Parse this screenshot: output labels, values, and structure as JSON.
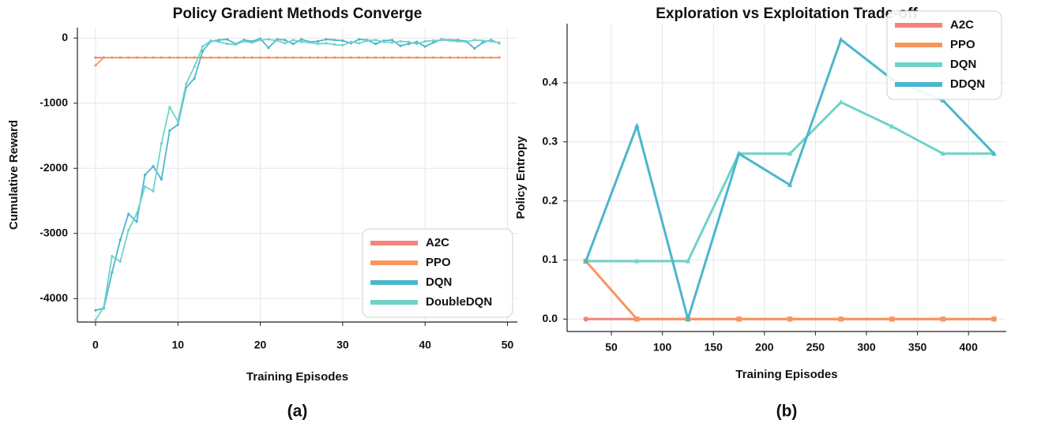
{
  "chart_data": [
    {
      "type": "line",
      "title": "Policy Gradient Methods Converge",
      "xlabel": "Training Episodes",
      "ylabel": "Cumulative Reward",
      "caption": "(a)",
      "x": [
        0,
        1,
        2,
        3,
        4,
        5,
        6,
        7,
        8,
        9,
        10,
        11,
        12,
        13,
        14,
        15,
        16,
        17,
        18,
        19,
        20,
        21,
        22,
        23,
        24,
        25,
        26,
        27,
        28,
        29,
        30,
        31,
        32,
        33,
        34,
        35,
        36,
        37,
        38,
        39,
        40,
        41,
        42,
        43,
        44,
        45,
        46,
        47,
        48,
        49
      ],
      "series": [
        {
          "name": "A2C",
          "color": "#f4837d",
          "marker": "circle",
          "values": [
            -300,
            -300,
            -300,
            -300,
            -300,
            -300,
            -300,
            -300,
            -300,
            -300,
            -300,
            -300,
            -300,
            -300,
            -300,
            -300,
            -300,
            -300,
            -300,
            -300,
            -300,
            -300,
            -300,
            -300,
            -300,
            -300,
            -300,
            -300,
            -300,
            -300,
            -300,
            -300,
            -300,
            -300,
            -300,
            -300,
            -300,
            -300,
            -300,
            -300,
            -300,
            -300,
            -300,
            -300,
            -300,
            -300,
            -300,
            -300,
            -300,
            -300
          ]
        },
        {
          "name": "PPO",
          "color": "#f7955f",
          "marker": "circle",
          "values": [
            -420,
            -300,
            -300,
            -300,
            -300,
            -300,
            -300,
            -300,
            -300,
            -300,
            -300,
            -300,
            -300,
            -300,
            -300,
            -300,
            -300,
            -300,
            -300,
            -300,
            -300,
            -300,
            -300,
            -300,
            -300,
            -300,
            -300,
            -300,
            -300,
            -300,
            -300,
            -300,
            -300,
            -300,
            -300,
            -300,
            -300,
            -300,
            -300,
            -300,
            -300,
            -300,
            -300,
            -300,
            -300,
            -300,
            -300,
            -300,
            -300,
            -300
          ]
        },
        {
          "name": "DQN",
          "color": "#4bb6cf",
          "marker": "circle",
          "values": [
            -4180,
            -4150,
            -3600,
            -3100,
            -2700,
            -2820,
            -2100,
            -1970,
            -2170,
            -1420,
            -1330,
            -760,
            -620,
            -200,
            -50,
            -30,
            -20,
            -90,
            -30,
            -50,
            -10,
            -150,
            -20,
            -30,
            -90,
            -20,
            -60,
            -50,
            -20,
            -30,
            -40,
            -80,
            -20,
            -30,
            -90,
            -40,
            -30,
            -120,
            -90,
            -60,
            -130,
            -70,
            -20,
            -30,
            -30,
            -50,
            -160,
            -70,
            -30,
            -80
          ]
        },
        {
          "name": "DoubleDQN",
          "color": "#6fd3c8",
          "marker": "circle",
          "values": [
            -4330,
            -4130,
            -3350,
            -3430,
            -2950,
            -2700,
            -2280,
            -2350,
            -1620,
            -1060,
            -1280,
            -700,
            -440,
            -130,
            -40,
            -60,
            -90,
            -100,
            -50,
            -70,
            -30,
            -20,
            -40,
            -80,
            -30,
            -60,
            -70,
            -90,
            -80,
            -100,
            -110,
            -60,
            -80,
            -40,
            -30,
            -60,
            -70,
            -50,
            -60,
            -90,
            -50,
            -40,
            -30,
            -40,
            -50,
            -60,
            -30,
            -40,
            -50,
            -70
          ]
        }
      ],
      "xlim": [
        -2.2,
        51.2
      ],
      "xticks": [
        0,
        10,
        20,
        30,
        40,
        50
      ],
      "ylim": [
        -4360,
        160
      ],
      "yticks": [
        -4000,
        -3000,
        -2000,
        -1000,
        0
      ],
      "grid": true,
      "legend": "lower right"
    },
    {
      "type": "line",
      "title": "Exploration vs Exploitation Trade-off",
      "xlabel": "Training Episodes",
      "ylabel": "Policy Entropy",
      "caption": "(b)",
      "x": [
        25,
        75,
        125,
        175,
        225,
        275,
        325,
        375,
        425
      ],
      "series": [
        {
          "name": "A2C",
          "color": "#f4837d",
          "marker": "circle",
          "values": [
            0,
            0,
            0,
            0,
            0,
            0,
            0,
            0,
            0
          ]
        },
        {
          "name": "PPO",
          "color": "#f7955f",
          "marker": "square",
          "values": [
            0.098,
            0,
            0,
            0,
            0,
            0,
            0,
            0,
            0
          ]
        },
        {
          "name": "DQN",
          "color": "#6fd3c8",
          "marker": "triangle",
          "values": [
            0.098,
            0.098,
            0.098,
            0.28,
            0.28,
            0.367,
            0.326,
            0.28,
            0.28
          ]
        },
        {
          "name": "DDQN",
          "color": "#4bb6cf",
          "marker": "triangle",
          "values": [
            0.098,
            0.327,
            0,
            0.28,
            0.227,
            0.473,
            0.406,
            0.37,
            0.28
          ]
        }
      ],
      "xlim": [
        6.6,
        437
      ],
      "xticks": [
        50,
        100,
        150,
        200,
        250,
        300,
        350,
        400
      ],
      "ylim": [
        -0.021,
        0.5
      ],
      "yticks": [
        {
          "value": 0,
          "label": "0.0"
        },
        0.1,
        0.2,
        0.3,
        0.4
      ],
      "grid": true,
      "legend": "upper right"
    }
  ]
}
